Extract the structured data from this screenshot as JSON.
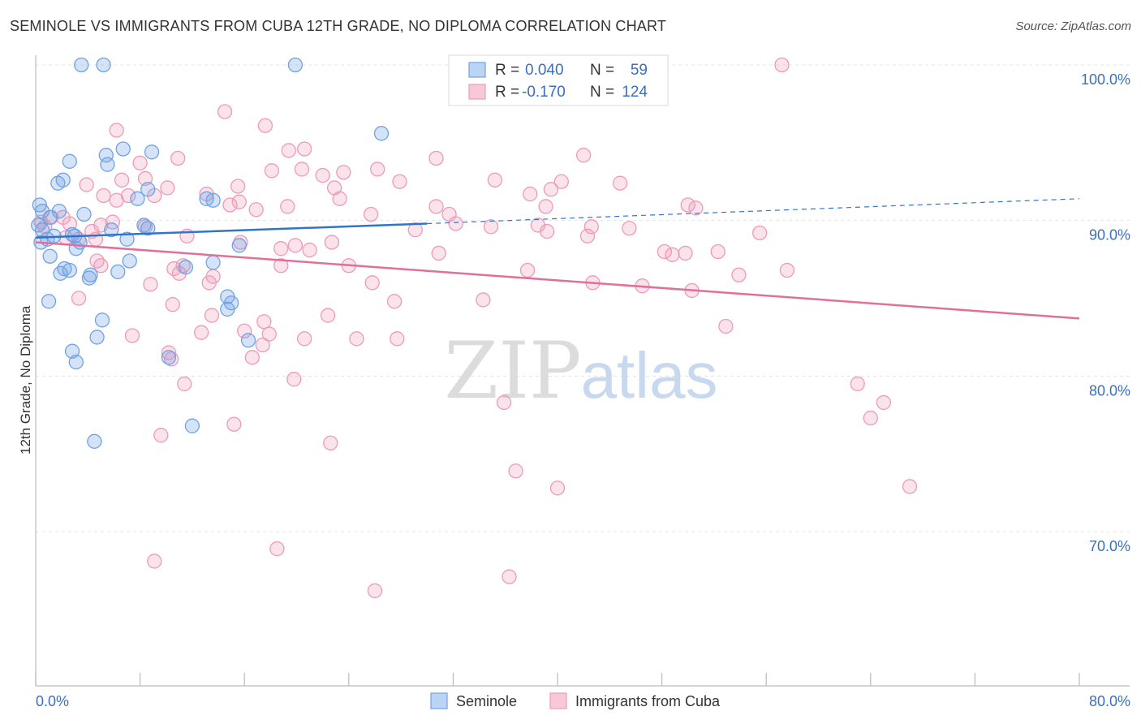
{
  "title": "SEMINOLE VS IMMIGRANTS FROM CUBA 12TH GRADE, NO DIPLOMA CORRELATION CHART",
  "source": "Source: ZipAtlas.com",
  "watermark": {
    "zip": "ZIP",
    "atlas": "atlas"
  },
  "legend_top": [
    {
      "r_label": "R =",
      "r_value": "0.040",
      "n_label": "N =",
      "n_value": "59"
    },
    {
      "r_label": "R =",
      "r_value": "-0.170",
      "n_label": "N =",
      "n_value": "124"
    }
  ],
  "legend_bottom": [
    "Seminole",
    "Immigrants from Cuba"
  ],
  "chart_data": {
    "type": "scatter",
    "title": "SEMINOLE VS IMMIGRANTS FROM CUBA 12TH GRADE, NO DIPLOMA CORRELATION CHART",
    "xlabel": "",
    "ylabel": "12th Grade, No Diploma",
    "xlim": [
      0,
      80
    ],
    "ylim": [
      60,
      102
    ],
    "x_tick_labels": [
      "0.0%",
      "80.0%"
    ],
    "y_tick_labels": [
      "100.0%",
      "90.0%",
      "80.0%",
      "70.0%"
    ],
    "y_ticks": [
      100,
      90,
      80,
      70
    ],
    "grid": true,
    "legend_position": "top-center",
    "colors": {
      "seminole": "#6fa3e3",
      "cuba": "#ee9ab8",
      "seminole_line": "#3075c8",
      "cuba_line": "#e0709a",
      "tick": "#3a6fc0"
    },
    "series": [
      {
        "name": "Seminole",
        "r": 0.04,
        "n": 59,
        "trend": [
          [
            0,
            88.9
          ],
          [
            30,
            89.8
          ]
        ],
        "trend_dashed": [
          [
            30,
            89.8
          ],
          [
            80,
            91.4
          ]
        ],
        "points": [
          [
            3.5,
            100
          ],
          [
            5.2,
            100
          ],
          [
            19.9,
            100
          ],
          [
            26.5,
            95.6
          ],
          [
            6.7,
            94.6
          ],
          [
            8.9,
            94.4
          ],
          [
            5.4,
            94.2
          ],
          [
            2.6,
            93.8
          ],
          [
            5.5,
            93.6
          ],
          [
            2.1,
            92.6
          ],
          [
            1.7,
            92.4
          ],
          [
            8.6,
            92.0
          ],
          [
            0.3,
            91.0
          ],
          [
            13.1,
            91.4
          ],
          [
            13.6,
            91.3
          ],
          [
            7.8,
            91.4
          ],
          [
            1.8,
            90.6
          ],
          [
            3.7,
            90.4
          ],
          [
            0.5,
            90.6
          ],
          [
            1.1,
            90.2
          ],
          [
            0.2,
            89.7
          ],
          [
            0.5,
            89.4
          ],
          [
            5.8,
            89.4
          ],
          [
            8.3,
            89.7
          ],
          [
            8.6,
            89.5
          ],
          [
            1.4,
            89.0
          ],
          [
            2.8,
            89.1
          ],
          [
            3.0,
            89.0
          ],
          [
            7.0,
            88.8
          ],
          [
            0.9,
            88.8
          ],
          [
            0.4,
            88.6
          ],
          [
            3.4,
            88.6
          ],
          [
            3.1,
            88.2
          ],
          [
            15.6,
            88.4
          ],
          [
            1.1,
            87.7
          ],
          [
            7.2,
            87.4
          ],
          [
            13.6,
            87.3
          ],
          [
            11.5,
            87.0
          ],
          [
            2.2,
            86.9
          ],
          [
            2.6,
            86.8
          ],
          [
            1.9,
            86.6
          ],
          [
            4.2,
            86.5
          ],
          [
            6.3,
            86.7
          ],
          [
            4.1,
            86.3
          ],
          [
            14.7,
            85.1
          ],
          [
            15.0,
            84.7
          ],
          [
            14.7,
            84.3
          ],
          [
            1.0,
            84.8
          ],
          [
            5.1,
            83.6
          ],
          [
            4.7,
            82.5
          ],
          [
            16.3,
            82.3
          ],
          [
            2.8,
            81.6
          ],
          [
            10.2,
            81.2
          ],
          [
            3.1,
            80.9
          ],
          [
            12.0,
            76.8
          ],
          [
            4.5,
            75.8
          ]
        ]
      },
      {
        "name": "Immigrants from Cuba",
        "r": -0.17,
        "n": 124,
        "trend": [
          [
            0,
            88.6
          ],
          [
            80,
            83.7
          ]
        ],
        "points": [
          [
            57.2,
            100
          ],
          [
            14.5,
            97.0
          ],
          [
            17.6,
            96.1
          ],
          [
            6.2,
            95.8
          ],
          [
            19.4,
            94.5
          ],
          [
            20.6,
            94.6
          ],
          [
            42.0,
            94.2
          ],
          [
            10.9,
            94.0
          ],
          [
            30.7,
            94.0
          ],
          [
            8.0,
            93.7
          ],
          [
            18.1,
            93.2
          ],
          [
            20.4,
            93.3
          ],
          [
            22.0,
            92.9
          ],
          [
            23.6,
            93.1
          ],
          [
            26.2,
            93.3
          ],
          [
            35.2,
            92.6
          ],
          [
            27.9,
            92.5
          ],
          [
            6.6,
            92.6
          ],
          [
            8.4,
            92.7
          ],
          [
            3.9,
            92.3
          ],
          [
            10.1,
            92.1
          ],
          [
            15.5,
            92.2
          ],
          [
            22.9,
            92.1
          ],
          [
            5.2,
            91.6
          ],
          [
            7.1,
            91.6
          ],
          [
            6.2,
            91.3
          ],
          [
            9.1,
            91.6
          ],
          [
            13.1,
            91.7
          ],
          [
            14.9,
            91.0
          ],
          [
            15.6,
            91.2
          ],
          [
            16.9,
            90.7
          ],
          [
            19.3,
            90.9
          ],
          [
            23.3,
            91.4
          ],
          [
            30.7,
            90.9
          ],
          [
            31.7,
            90.4
          ],
          [
            37.9,
            91.7
          ],
          [
            39.5,
            92.0
          ],
          [
            40.3,
            92.5
          ],
          [
            39.1,
            90.9
          ],
          [
            44.8,
            92.4
          ],
          [
            50.0,
            91.0
          ],
          [
            2.1,
            90.2
          ],
          [
            1.2,
            90.2
          ],
          [
            0.4,
            89.9
          ],
          [
            0.7,
            89.6
          ],
          [
            2.6,
            89.8
          ],
          [
            5.0,
            89.7
          ],
          [
            4.3,
            89.3
          ],
          [
            2.3,
            88.9
          ],
          [
            4.6,
            88.8
          ],
          [
            5.9,
            89.9
          ],
          [
            8.4,
            89.6
          ],
          [
            11.6,
            89.0
          ],
          [
            15.7,
            88.6
          ],
          [
            18.8,
            88.2
          ],
          [
            19.9,
            88.4
          ],
          [
            22.7,
            88.6
          ],
          [
            25.7,
            90.4
          ],
          [
            29.1,
            89.4
          ],
          [
            32.2,
            89.8
          ],
          [
            34.9,
            89.6
          ],
          [
            38.5,
            89.7
          ],
          [
            39.2,
            89.3
          ],
          [
            42.6,
            89.6
          ],
          [
            42.3,
            89.0
          ],
          [
            45.5,
            89.5
          ],
          [
            48.2,
            88.0
          ],
          [
            48.8,
            87.8
          ],
          [
            49.8,
            87.9
          ],
          [
            50.6,
            90.8
          ],
          [
            52.3,
            88.0
          ],
          [
            55.5,
            89.2
          ],
          [
            57.6,
            86.8
          ],
          [
            3.3,
            88.8
          ],
          [
            4.7,
            87.4
          ],
          [
            5.0,
            87.1
          ],
          [
            10.6,
            86.9
          ],
          [
            11.3,
            87.1
          ],
          [
            11.0,
            86.6
          ],
          [
            13.3,
            86.0
          ],
          [
            13.6,
            86.4
          ],
          [
            18.8,
            87.1
          ],
          [
            21.0,
            88.1
          ],
          [
            24.0,
            87.1
          ],
          [
            25.8,
            86.0
          ],
          [
            30.9,
            87.9
          ],
          [
            37.7,
            86.8
          ],
          [
            42.7,
            86.0
          ],
          [
            46.5,
            85.8
          ],
          [
            50.3,
            85.5
          ],
          [
            53.9,
            86.5
          ],
          [
            3.3,
            85.0
          ],
          [
            8.8,
            85.9
          ],
          [
            10.5,
            84.6
          ],
          [
            13.5,
            83.9
          ],
          [
            17.5,
            83.5
          ],
          [
            22.4,
            83.9
          ],
          [
            27.5,
            84.8
          ],
          [
            34.3,
            84.9
          ],
          [
            52.9,
            83.2
          ],
          [
            7.4,
            82.6
          ],
          [
            12.7,
            82.8
          ],
          [
            16.0,
            82.9
          ],
          [
            17.9,
            82.7
          ],
          [
            20.6,
            82.4
          ],
          [
            24.6,
            82.4
          ],
          [
            27.7,
            82.4
          ],
          [
            17.4,
            82.0
          ],
          [
            10.2,
            81.5
          ],
          [
            10.4,
            81.1
          ],
          [
            16.6,
            81.2
          ],
          [
            19.8,
            79.8
          ],
          [
            11.4,
            79.5
          ],
          [
            63.0,
            79.5
          ],
          [
            35.9,
            78.3
          ],
          [
            65.0,
            78.3
          ],
          [
            64.0,
            77.3
          ],
          [
            15.2,
            76.9
          ],
          [
            9.6,
            76.2
          ],
          [
            22.6,
            75.7
          ],
          [
            36.8,
            73.9
          ],
          [
            40.0,
            72.8
          ],
          [
            67.0,
            72.9
          ],
          [
            18.5,
            68.9
          ],
          [
            9.1,
            68.1
          ],
          [
            36.3,
            67.1
          ],
          [
            26.0,
            66.2
          ]
        ]
      }
    ]
  }
}
